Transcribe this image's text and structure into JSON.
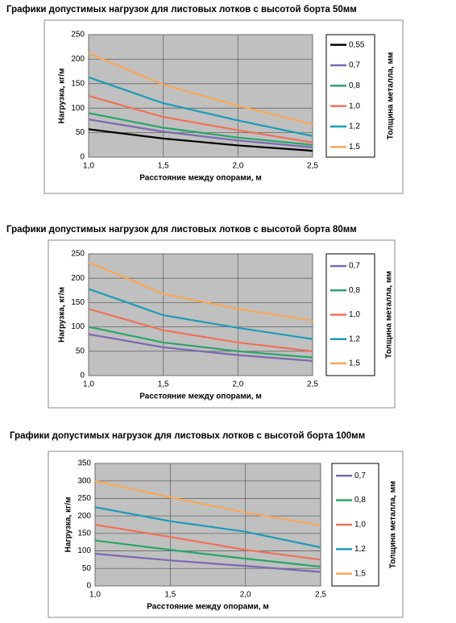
{
  "chart_data": [
    {
      "type": "line",
      "title": "Графики допустимых нагрузок для листовых лотков с высотой борта 50мм",
      "x_label": "Расстояние между опорами, м",
      "y_label": "Нагрузка, кг/м",
      "legend_title": "Толщина металла, мм",
      "x": [
        1,
        1.5,
        2,
        2.5
      ],
      "xlim": [
        1,
        2.5
      ],
      "xticks": [
        {
          "value": 1,
          "label": "1,0"
        },
        {
          "value": 1.5,
          "label": "1,5"
        },
        {
          "value": 2,
          "label": "2,0"
        },
        {
          "value": 2.5,
          "label": "2,5"
        }
      ],
      "ylim": [
        0,
        250
      ],
      "yticks": [
        0,
        50,
        100,
        150,
        200,
        250
      ],
      "grid": true,
      "series": [
        {
          "name": "0,55",
          "color": "#000000",
          "values": [
            57,
            38,
            24,
            13
          ]
        },
        {
          "name": "0,7",
          "color": "#7b68b0",
          "values": [
            77,
            52,
            34,
            20
          ]
        },
        {
          "name": "0,8",
          "color": "#2aa56a",
          "values": [
            90,
            60,
            40,
            25
          ]
        },
        {
          "name": "1,0",
          "color": "#f0705a",
          "values": [
            125,
            82,
            55,
            30
          ]
        },
        {
          "name": "1,2",
          "color": "#1b9bb8",
          "values": [
            163,
            110,
            75,
            43
          ]
        },
        {
          "name": "1,5",
          "color": "#f7a85a",
          "values": [
            212,
            148,
            105,
            67
          ]
        }
      ]
    },
    {
      "type": "line",
      "title": "Графики допустимых нагрузок для листовых лотков с высотой борта 80мм",
      "x_label": "Расстояние между опорами, м",
      "y_label": "Нагрузка, кг/м",
      "legend_title": "Толщина металла, мм",
      "x": [
        1,
        1.5,
        2,
        2.5
      ],
      "xlim": [
        1,
        2.5
      ],
      "xticks": [
        {
          "value": 1,
          "label": "1,0"
        },
        {
          "value": 1.5,
          "label": "1,5"
        },
        {
          "value": 2,
          "label": "2,0"
        },
        {
          "value": 2.5,
          "label": "2,5"
        }
      ],
      "ylim": [
        0,
        250
      ],
      "yticks": [
        0,
        50,
        100,
        150,
        200,
        250
      ],
      "grid": true,
      "series": [
        {
          "name": "0,7",
          "color": "#7b68b0",
          "values": [
            85,
            58,
            42,
            30
          ]
        },
        {
          "name": "0,8",
          "color": "#2aa56a",
          "values": [
            100,
            68,
            50,
            37
          ]
        },
        {
          "name": "1,0",
          "color": "#f0705a",
          "values": [
            137,
            93,
            68,
            50
          ]
        },
        {
          "name": "1,2",
          "color": "#1b9bb8",
          "values": [
            178,
            124,
            98,
            75
          ]
        },
        {
          "name": "1,5",
          "color": "#f7a85a",
          "values": [
            233,
            168,
            137,
            113
          ]
        }
      ]
    },
    {
      "type": "line",
      "title": "Графики допустимых нагрузок для листовых лотков с высотой борта 100мм",
      "x_label": "Расстояние между опорами, м",
      "y_label": "Нагрузка, кг/м",
      "legend_title": "Толщина металла, мм",
      "x": [
        1,
        1.5,
        2,
        2.5
      ],
      "xlim": [
        1,
        2.5
      ],
      "xticks": [
        {
          "value": 1,
          "label": "1,0"
        },
        {
          "value": 1.5,
          "label": "1,5"
        },
        {
          "value": 2,
          "label": "2,0"
        },
        {
          "value": 2.5,
          "label": "2,5"
        }
      ],
      "ylim": [
        0,
        350
      ],
      "yticks": [
        0,
        50,
        100,
        150,
        200,
        250,
        300,
        350
      ],
      "grid": true,
      "series": [
        {
          "name": "0,7",
          "color": "#7b68b0",
          "values": [
            92,
            73,
            57,
            40
          ]
        },
        {
          "name": "0,8",
          "color": "#2aa56a",
          "values": [
            130,
            103,
            78,
            55
          ]
        },
        {
          "name": "1,0",
          "color": "#f0705a",
          "values": [
            175,
            140,
            103,
            75
          ]
        },
        {
          "name": "1,2",
          "color": "#1b9bb8",
          "values": [
            225,
            185,
            155,
            110
          ]
        },
        {
          "name": "1,5",
          "color": "#f7a85a",
          "values": [
            300,
            253,
            210,
            173
          ]
        }
      ]
    }
  ]
}
